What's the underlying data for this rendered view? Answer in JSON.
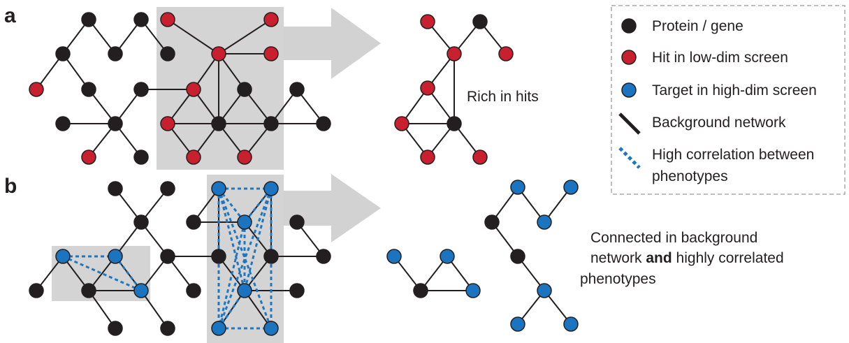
{
  "colors": {
    "protein": "#231f20",
    "hit": "#c8202f",
    "target": "#1a74c0",
    "highlight": "#d4d4d4",
    "arrow": "#d2d2d2",
    "legend_border": "#a8a8a8"
  },
  "panels": {
    "a": {
      "letter": "a",
      "caption": "Rich in hits"
    },
    "b": {
      "letter": "b",
      "caption_line1": "Connected in background",
      "caption_line2_pre": "network ",
      "caption_line2_bold": "and",
      "caption_line2_post": " highly correlated",
      "caption_line3": "phenotypes"
    }
  },
  "legend": {
    "protein": "Protein / gene",
    "hit": "Hit in low-dim screen",
    "target": "Target in high-dim screen",
    "background": "Background network",
    "correlation_line1": "High correlation between",
    "correlation_line2": "phenotypes"
  }
}
